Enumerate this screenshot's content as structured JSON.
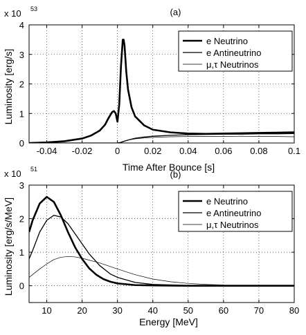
{
  "chart_data": [
    {
      "type": "line",
      "title": "(a)",
      "xlabel": "Time After Bounce [s]",
      "ylabel": "Luminosity [erg/s]",
      "multiplier": "x 10",
      "exponent": "53",
      "xlim": [
        -0.05,
        0.1
      ],
      "ylim": [
        0,
        4
      ],
      "xticks": [
        -0.04,
        -0.02,
        0,
        0.02,
        0.04,
        0.06,
        0.08,
        0.1
      ],
      "xtick_labels": [
        "-0.04",
        "-0.02",
        "0",
        "0.02",
        "0.04",
        "0.06",
        "0.08",
        "0.1"
      ],
      "yticks": [
        0,
        1,
        2,
        3,
        4
      ],
      "ytick_labels": [
        "0",
        "1",
        "2",
        "3",
        "4"
      ],
      "grid": true,
      "legend_position": "top-right",
      "series": [
        {
          "name": "e Neutrino",
          "x": [
            -0.05,
            -0.04,
            -0.03,
            -0.02,
            -0.015,
            -0.01,
            -0.007,
            -0.005,
            -0.003,
            -0.002,
            -0.001,
            0.0,
            0.001,
            0.002,
            0.003,
            0.0035,
            0.004,
            0.005,
            0.006,
            0.008,
            0.01,
            0.015,
            0.02,
            0.03,
            0.04,
            0.05,
            0.06,
            0.07,
            0.08,
            0.09,
            0.1
          ],
          "y": [
            0.0,
            0.02,
            0.06,
            0.15,
            0.25,
            0.42,
            0.62,
            0.85,
            1.05,
            1.08,
            1.0,
            0.72,
            1.3,
            2.6,
            3.5,
            3.5,
            3.3,
            2.4,
            1.8,
            1.2,
            0.9,
            0.6,
            0.45,
            0.36,
            0.32,
            0.31,
            0.32,
            0.33,
            0.34,
            0.35,
            0.36
          ]
        },
        {
          "name": "e Antineutrino",
          "x": [
            -0.05,
            0.0,
            0.002,
            0.004,
            0.006,
            0.01,
            0.015,
            0.02,
            0.03,
            0.04,
            0.05,
            0.06,
            0.07,
            0.08,
            0.09,
            0.1
          ],
          "y": [
            0.0,
            0.0,
            0.02,
            0.06,
            0.1,
            0.16,
            0.2,
            0.23,
            0.26,
            0.28,
            0.29,
            0.3,
            0.3,
            0.31,
            0.31,
            0.32
          ]
        },
        {
          "name": "μ,τ Neutrinos",
          "x": [
            -0.05,
            0.0,
            0.002,
            0.004,
            0.006,
            0.01,
            0.015,
            0.02,
            0.03,
            0.04,
            0.05,
            0.06,
            0.07,
            0.08,
            0.09,
            0.1
          ],
          "y": [
            0.0,
            0.0,
            0.03,
            0.07,
            0.1,
            0.14,
            0.17,
            0.19,
            0.21,
            0.22,
            0.22,
            0.22,
            0.23,
            0.22,
            0.22,
            0.21
          ]
        }
      ]
    },
    {
      "type": "line",
      "title": "(b)",
      "xlabel": "Energy [MeV]",
      "ylabel": "Luminosity [erg/s/MeV]",
      "multiplier": "x 10",
      "exponent": "51",
      "xlim": [
        5,
        80
      ],
      "ylim": [
        -0.5,
        3
      ],
      "xticks": [
        10,
        20,
        30,
        40,
        50,
        60,
        70,
        80
      ],
      "xtick_labels": [
        "10",
        "20",
        "30",
        "40",
        "50",
        "60",
        "70",
        "80"
      ],
      "yticks": [
        0,
        1,
        2,
        3
      ],
      "ytick_labels": [
        "0",
        "1",
        "2",
        "3"
      ],
      "grid": true,
      "legend_position": "top-right",
      "series": [
        {
          "name": "e Neutrino",
          "x": [
            5,
            6,
            8,
            10,
            12,
            14,
            16,
            18,
            20,
            22,
            24,
            26,
            28,
            30,
            35,
            40,
            50,
            60,
            70,
            80
          ],
          "y": [
            1.6,
            1.95,
            2.45,
            2.65,
            2.5,
            2.1,
            1.6,
            1.15,
            0.8,
            0.52,
            0.33,
            0.2,
            0.12,
            0.07,
            0.02,
            0.01,
            0.0,
            0.0,
            0.0,
            0.0
          ]
        },
        {
          "name": "e Antineutrino",
          "x": [
            5,
            6,
            8,
            10,
            12,
            14,
            16,
            18,
            20,
            22,
            25,
            28,
            30,
            35,
            40,
            50,
            60,
            70,
            80
          ],
          "y": [
            0.8,
            1.05,
            1.6,
            1.95,
            2.1,
            2.05,
            1.85,
            1.55,
            1.25,
            0.95,
            0.6,
            0.35,
            0.25,
            0.1,
            0.04,
            0.01,
            0.0,
            0.0,
            0.0
          ]
        },
        {
          "name": "μ,τ Neutrinos",
          "x": [
            5,
            8,
            10,
            12,
            14,
            16,
            18,
            20,
            25,
            30,
            35,
            40,
            45,
            50,
            55,
            60,
            70,
            80
          ],
          "y": [
            0.25,
            0.5,
            0.65,
            0.78,
            0.85,
            0.87,
            0.86,
            0.82,
            0.68,
            0.5,
            0.33,
            0.2,
            0.12,
            0.07,
            0.04,
            0.02,
            0.01,
            0.0
          ]
        }
      ]
    }
  ]
}
